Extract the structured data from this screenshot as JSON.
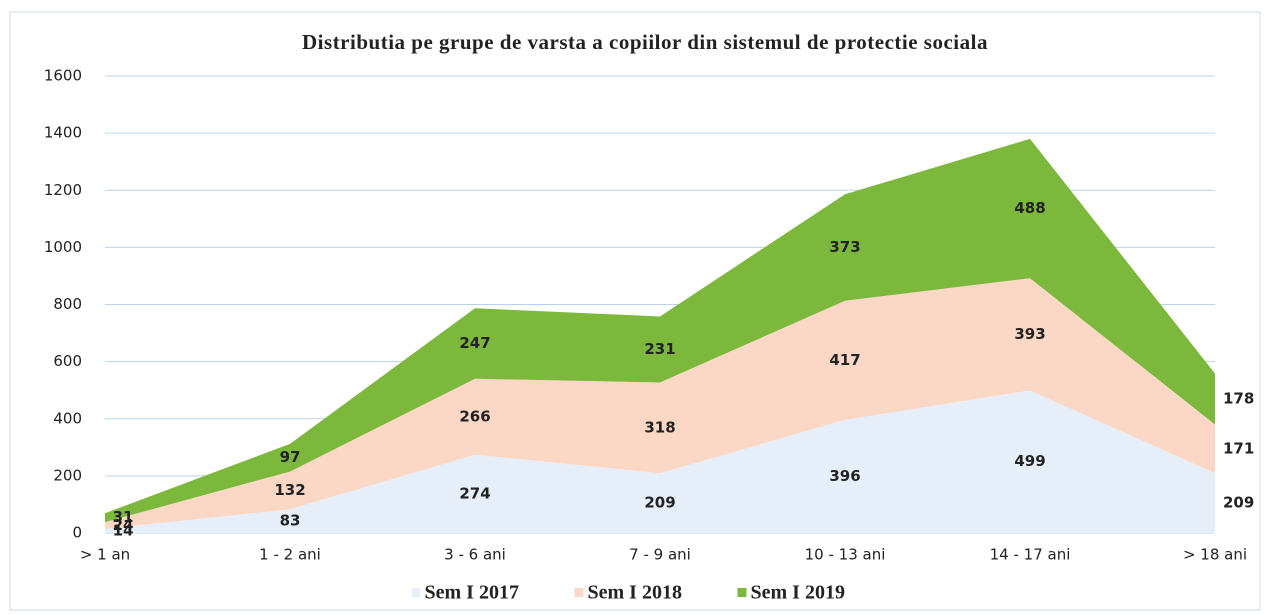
{
  "chart_data": {
    "type": "stacked_area",
    "title": "Distributia pe grupe de varsta a copiilor din sistemul de protectie sociala",
    "categories": [
      "> 1 an",
      "1 - 2 ani",
      "3 - 6 ani",
      "7 - 9 ani",
      "10 - 13 ani",
      "14 - 17 ani",
      "> 18 ani"
    ],
    "series": [
      {
        "name": "Sem I 2017",
        "color": "#e6eff9",
        "values": [
          14,
          83,
          274,
          209,
          396,
          499,
          209
        ]
      },
      {
        "name": "Sem I 2018",
        "color": "#fbd8c6",
        "values": [
          24,
          132,
          266,
          318,
          417,
          393,
          171
        ]
      },
      {
        "name": "Sem I 2019",
        "color": "#7cb83b",
        "values": [
          31,
          97,
          247,
          231,
          373,
          488,
          178
        ]
      }
    ],
    "ylim": [
      0,
      1600
    ],
    "yticks": [
      0,
      200,
      400,
      600,
      800,
      1000,
      1200,
      1400,
      1600
    ],
    "grid": true,
    "legend": "bottom"
  }
}
